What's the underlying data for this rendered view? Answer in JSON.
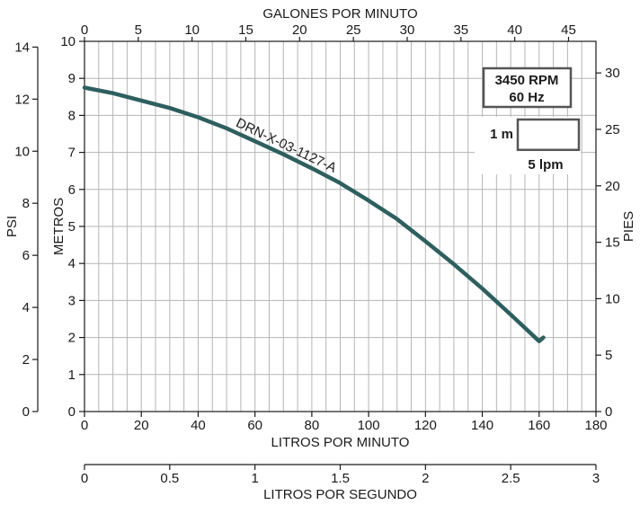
{
  "chart_data": {
    "type": "line",
    "title": "",
    "grid": true,
    "axes": {
      "bottom": {
        "label": "LITROS POR MINUTO",
        "range": [
          0,
          180
        ],
        "ticks": [
          "0",
          "20",
          "40",
          "60",
          "80",
          "100",
          "120",
          "140",
          "160",
          "180"
        ]
      },
      "top": {
        "label": "GALONES POR MINUTO",
        "range": [
          0,
          47.55
        ],
        "ticks": [
          "0",
          "5",
          "10",
          "15",
          "20",
          "25",
          "30",
          "35",
          "40",
          "45"
        ]
      },
      "left": {
        "label": "METROS",
        "range": [
          0,
          10
        ],
        "ticks": [
          "0",
          "1",
          "2",
          "3",
          "4",
          "5",
          "6",
          "7",
          "8",
          "9",
          "10"
        ]
      },
      "far_left": {
        "label": "PSI",
        "range": [
          0,
          14.22
        ],
        "ticks": [
          "0",
          "2",
          "4",
          "6",
          "8",
          "10",
          "12",
          "14"
        ]
      },
      "right": {
        "label": "PIES",
        "range": [
          0,
          32.8
        ],
        "ticks": [
          "0",
          "5",
          "10",
          "15",
          "20",
          "25",
          "30"
        ]
      },
      "secondary_bottom": {
        "label": "LITROS POR SEGUNDO",
        "range": [
          0,
          3
        ],
        "ticks": [
          "0",
          "0.5",
          "1",
          "1.5",
          "2",
          "2.5",
          "3"
        ]
      }
    },
    "series": [
      {
        "name": "DRN-X-03-1127-A",
        "color": "#2e5f5f",
        "x": [
          0,
          10,
          20,
          30,
          40,
          50,
          60,
          70,
          80,
          90,
          100,
          110,
          120,
          130,
          140,
          150,
          160,
          161.5
        ],
        "y": [
          8.75,
          8.6,
          8.4,
          8.2,
          7.95,
          7.65,
          7.3,
          6.95,
          6.57,
          6.17,
          5.7,
          5.2,
          4.6,
          3.98,
          3.32,
          2.62,
          1.9,
          2.0
        ]
      }
    ],
    "legend": {
      "speed_line1": "3450 RPM",
      "speed_line2": "60 Hz",
      "scale_y_label": "1 m",
      "scale_x_label": "5 lpm"
    }
  }
}
